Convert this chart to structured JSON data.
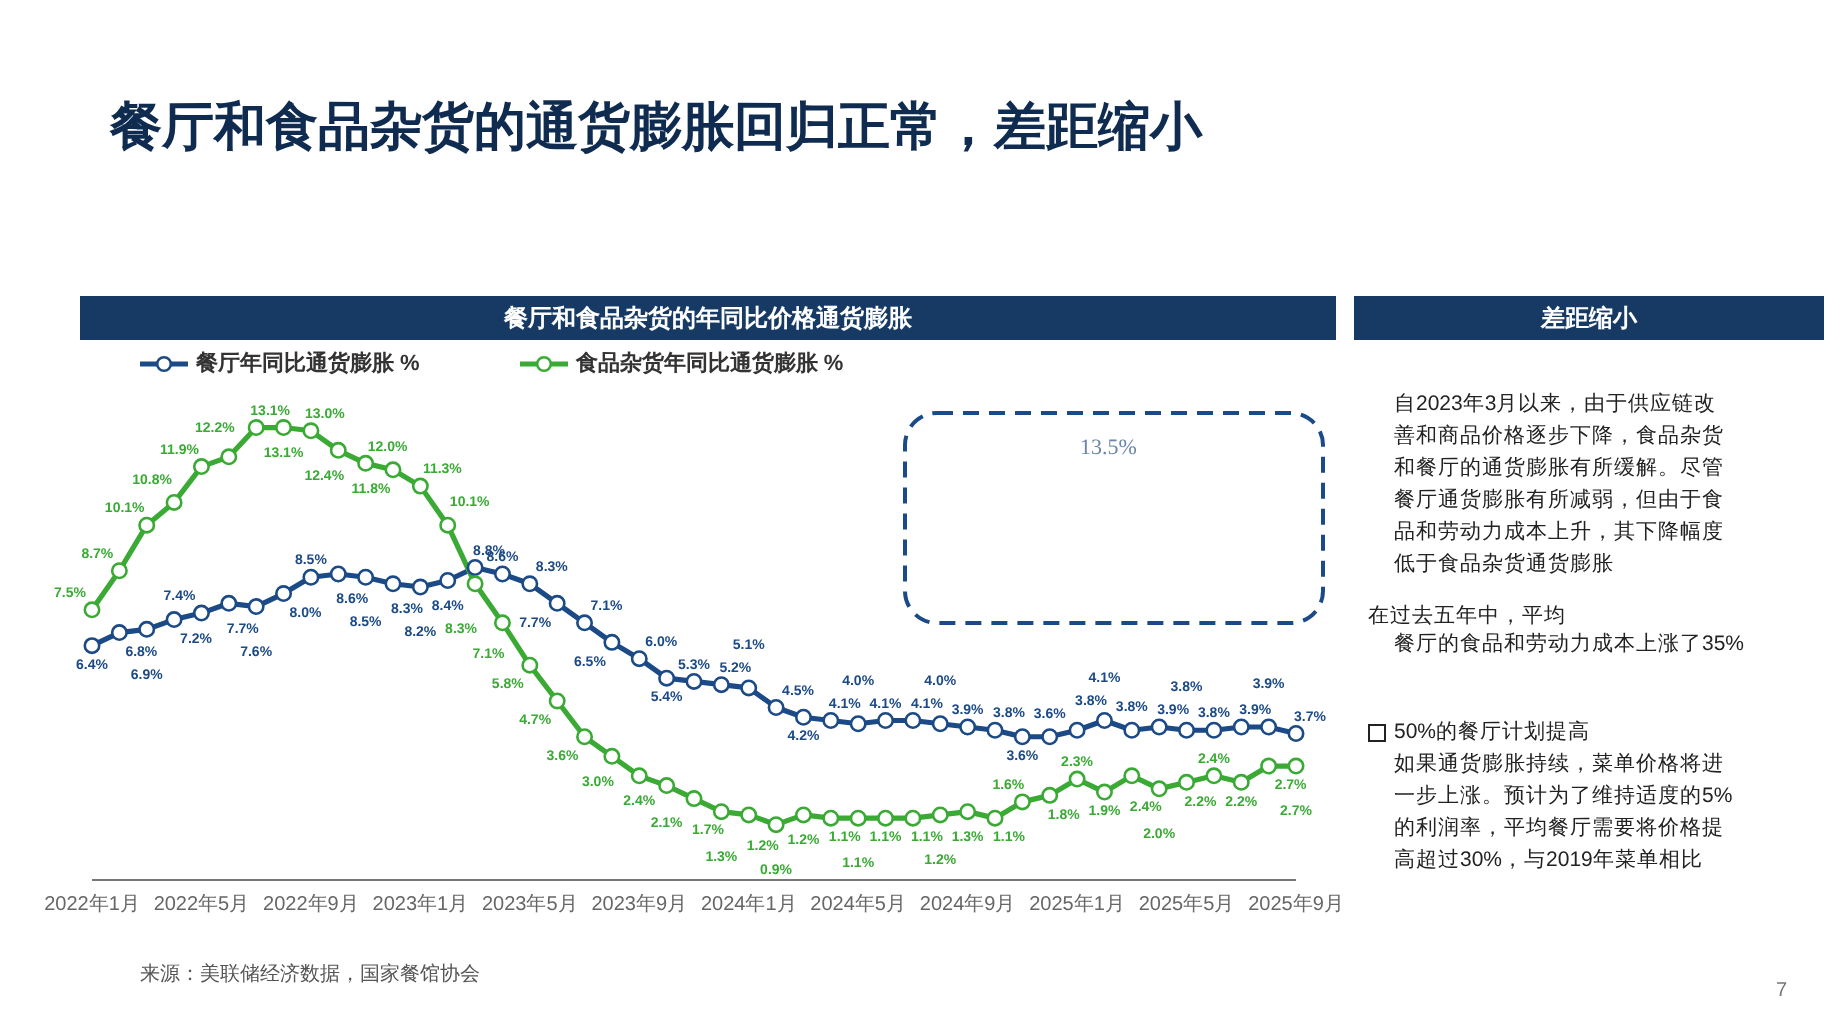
{
  "chart_data": {
    "type": "line",
    "title": "餐厅和食品杂货的年同比价格通货膨胀",
    "categories": [
      "2022年1月",
      null,
      null,
      null,
      "2022年5月",
      null,
      null,
      null,
      "2022年9月",
      null,
      null,
      null,
      "2023年1月",
      null,
      null,
      null,
      "2023年5月",
      null,
      null,
      null,
      "2023年9月",
      null,
      null,
      null,
      "2024年1月",
      null,
      null,
      null,
      "2024年5月",
      null,
      null,
      null,
      "2024年9月",
      null,
      null,
      null,
      "2025年1月",
      null,
      null,
      null,
      "2025年5月",
      null,
      null,
      null,
      "2025年9月"
    ],
    "series": [
      {
        "name": "餐厅年同比通货膨胀 %",
        "color": "#1b4a86",
        "values": [
          6.4,
          6.8,
          6.9,
          7.2,
          7.4,
          7.7,
          7.6,
          8.0,
          8.5,
          8.6,
          8.5,
          8.3,
          8.2,
          8.4,
          8.8,
          8.6,
          8.3,
          7.7,
          7.1,
          6.5,
          6.0,
          5.4,
          5.3,
          5.2,
          5.1,
          4.5,
          4.2,
          4.1,
          4.0,
          4.1,
          4.1,
          4.0,
          3.9,
          3.8,
          3.6,
          3.6,
          3.8,
          4.1,
          3.8,
          3.9,
          3.8,
          3.8,
          3.9,
          3.9,
          3.7
        ],
        "value_labels": [
          "6.4%",
          "6.8%",
          "6.9%",
          "7.2%",
          "7.4%",
          "7.7%",
          "7.6%",
          "8.0%",
          "8.5%",
          "8.6%",
          "8.5%",
          "8.3%",
          "8.2%",
          "8.4%",
          "8.8%",
          "8.6%",
          "8.3%",
          "7.7%",
          "7.1%",
          "6.5%",
          "6.0%",
          "5.4%",
          "5.3%",
          "5.2%",
          "5.1%",
          "4.5%",
          "4.2%",
          "4.1%",
          "4.0%",
          "4.1%",
          "4.1%",
          "4.0%",
          "3.9%",
          "3.8%",
          "3.6%",
          "3.6%",
          "3.8%",
          "4.1%",
          "3.8%",
          "3.9%",
          "3.8%",
          "3.8%",
          "3.9%",
          "3.9%",
          "3.7%"
        ]
      },
      {
        "name": "食品杂货年同比通货膨胀 %",
        "color": "#3aaa35",
        "values": [
          7.5,
          8.7,
          10.1,
          10.8,
          11.9,
          12.2,
          13.1,
          13.1,
          13.0,
          12.4,
          12.0,
          11.8,
          11.3,
          10.1,
          8.3,
          7.1,
          5.8,
          4.7,
          3.6,
          3.0,
          2.4,
          2.1,
          1.7,
          1.3,
          1.2,
          0.9,
          1.2,
          1.1,
          1.1,
          1.1,
          1.1,
          1.2,
          1.3,
          1.1,
          1.6,
          1.8,
          2.3,
          1.9,
          2.4,
          2.0,
          2.2,
          2.4,
          2.2,
          2.7,
          2.7
        ],
        "value_labels": [
          "7.5%",
          "8.7%",
          "10.1%",
          "10.8%",
          "11.9%",
          "12.2%",
          "13.1%",
          "13.1%",
          "13.0%",
          "12.4%",
          "12.0%",
          "11.8%",
          "11.3%",
          "10.1%",
          "8.3%",
          "7.1%",
          "5.8%",
          "4.7%",
          "3.6%",
          "3.0%",
          "2.4%",
          "2.1%",
          "1.7%",
          "1.3%",
          "1.2%",
          "0.9%",
          "1.2%",
          "1.1%",
          "1.1%",
          "1.1%",
          "1.1%",
          "1.2%",
          "1.3%",
          "1.1%",
          "1.6%",
          "1.8%",
          "2.3%",
          "1.9%",
          "2.4%",
          "2.0%",
          "2.2%",
          "2.4%",
          "2.2%",
          "2.7%",
          "2.7%"
        ]
      }
    ],
    "tick_labels": "x",
    "legend": "top left",
    "marker": "circle",
    "line_style": "solid",
    "annotations": [
      "餐厅和食品杂货的通货膨胀回归正常，差距缩小",
      "差距缩小",
      "自2023年3月以来，由于供应链改善和商品价格逐步下降，食品杂货和餐厅的通货膨胀有所缓解。尽管餐厅通货膨胀有所减弱，但由于食品和劳动力成本上升，其下降幅度低于食品杂货通货膨胀",
      "在过去五年中，平均",
      "餐厅的食品和劳动力成本上涨了35%",
      "50%的餐厅计划提高",
      "如果通货膨胀持续，菜单价格将进一步上涨。预计为了维持适度的5%的利润率，平均餐厅需要将价格提高超过30%，与2019年菜单相比",
      "13.5%",
      "来源：美联储经济数据，国家餐馆协会",
      "7"
    ]
  }
}
